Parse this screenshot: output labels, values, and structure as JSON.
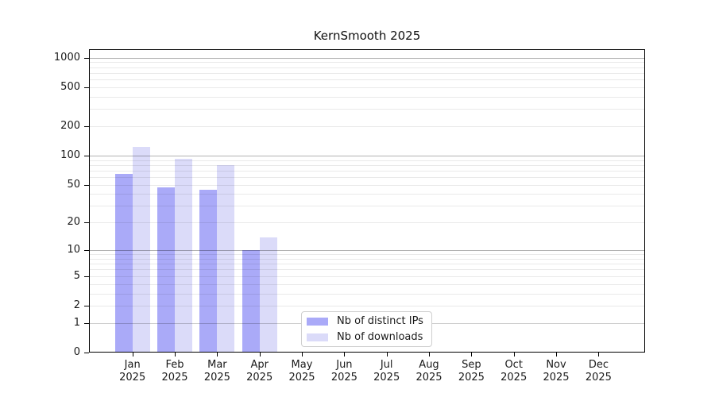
{
  "figure": {
    "background": "#ffffff",
    "text_color": "#1a1a1a",
    "axis_color": "#000000"
  },
  "chart_data": {
    "type": "bar",
    "title": "KernSmooth 2025",
    "categories": [
      "Jan",
      "Feb",
      "Mar",
      "Apr",
      "May",
      "Jun",
      "Jul",
      "Aug",
      "Sep",
      "Oct",
      "Nov",
      "Dec"
    ],
    "x_year_label": "2025",
    "series": [
      {
        "name": "Nb of distinct IPs",
        "color": "#aaaaf8",
        "values": [
          65,
          47,
          44,
          10,
          null,
          null,
          null,
          null,
          null,
          null,
          null,
          null
        ]
      },
      {
        "name": "Nb of downloads",
        "color": "#dbdbf9",
        "values": [
          124,
          93,
          80,
          14,
          null,
          null,
          null,
          null,
          null,
          null,
          null,
          null
        ]
      }
    ],
    "yscale": "log1p",
    "yticks": [
      0,
      1,
      2,
      5,
      10,
      20,
      50,
      100,
      200,
      500,
      1000
    ],
    "ylim": [
      0,
      1220
    ],
    "xlabel": "",
    "ylabel": "",
    "grid": "both horizontal",
    "grid_major_color": "rgba(0,0,0,0.30)",
    "grid_minor_color": "rgba(0,0,0,0.085)",
    "legend_position": "lower center"
  }
}
